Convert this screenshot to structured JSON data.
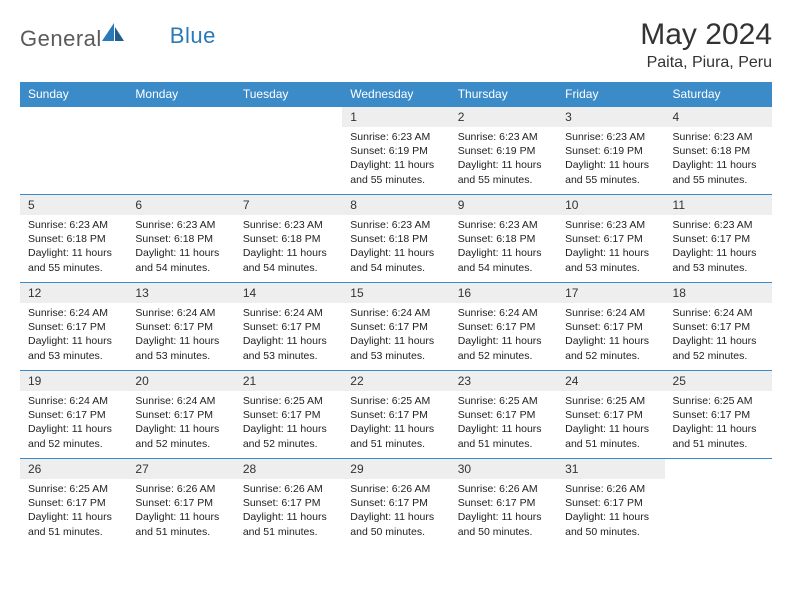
{
  "logo": {
    "text1": "General",
    "text2": "Blue"
  },
  "title": "May 2024",
  "location": "Paita, Piura, Peru",
  "colors": {
    "header_bg": "#3b8bc9",
    "header_text": "#ffffff",
    "daynum_bg": "#eeeeee",
    "border": "#3b8bc9",
    "logo_gray": "#5a5a5a",
    "logo_blue": "#2a7ab8"
  },
  "weekdays": [
    "Sunday",
    "Monday",
    "Tuesday",
    "Wednesday",
    "Thursday",
    "Friday",
    "Saturday"
  ],
  "weeks": [
    [
      null,
      null,
      null,
      {
        "n": "1",
        "sunrise": "6:23 AM",
        "sunset": "6:19 PM",
        "daylight": "11 hours and 55 minutes."
      },
      {
        "n": "2",
        "sunrise": "6:23 AM",
        "sunset": "6:19 PM",
        "daylight": "11 hours and 55 minutes."
      },
      {
        "n": "3",
        "sunrise": "6:23 AM",
        "sunset": "6:19 PM",
        "daylight": "11 hours and 55 minutes."
      },
      {
        "n": "4",
        "sunrise": "6:23 AM",
        "sunset": "6:18 PM",
        "daylight": "11 hours and 55 minutes."
      }
    ],
    [
      {
        "n": "5",
        "sunrise": "6:23 AM",
        "sunset": "6:18 PM",
        "daylight": "11 hours and 55 minutes."
      },
      {
        "n": "6",
        "sunrise": "6:23 AM",
        "sunset": "6:18 PM",
        "daylight": "11 hours and 54 minutes."
      },
      {
        "n": "7",
        "sunrise": "6:23 AM",
        "sunset": "6:18 PM",
        "daylight": "11 hours and 54 minutes."
      },
      {
        "n": "8",
        "sunrise": "6:23 AM",
        "sunset": "6:18 PM",
        "daylight": "11 hours and 54 minutes."
      },
      {
        "n": "9",
        "sunrise": "6:23 AM",
        "sunset": "6:18 PM",
        "daylight": "11 hours and 54 minutes."
      },
      {
        "n": "10",
        "sunrise": "6:23 AM",
        "sunset": "6:17 PM",
        "daylight": "11 hours and 53 minutes."
      },
      {
        "n": "11",
        "sunrise": "6:23 AM",
        "sunset": "6:17 PM",
        "daylight": "11 hours and 53 minutes."
      }
    ],
    [
      {
        "n": "12",
        "sunrise": "6:24 AM",
        "sunset": "6:17 PM",
        "daylight": "11 hours and 53 minutes."
      },
      {
        "n": "13",
        "sunrise": "6:24 AM",
        "sunset": "6:17 PM",
        "daylight": "11 hours and 53 minutes."
      },
      {
        "n": "14",
        "sunrise": "6:24 AM",
        "sunset": "6:17 PM",
        "daylight": "11 hours and 53 minutes."
      },
      {
        "n": "15",
        "sunrise": "6:24 AM",
        "sunset": "6:17 PM",
        "daylight": "11 hours and 53 minutes."
      },
      {
        "n": "16",
        "sunrise": "6:24 AM",
        "sunset": "6:17 PM",
        "daylight": "11 hours and 52 minutes."
      },
      {
        "n": "17",
        "sunrise": "6:24 AM",
        "sunset": "6:17 PM",
        "daylight": "11 hours and 52 minutes."
      },
      {
        "n": "18",
        "sunrise": "6:24 AM",
        "sunset": "6:17 PM",
        "daylight": "11 hours and 52 minutes."
      }
    ],
    [
      {
        "n": "19",
        "sunrise": "6:24 AM",
        "sunset": "6:17 PM",
        "daylight": "11 hours and 52 minutes."
      },
      {
        "n": "20",
        "sunrise": "6:24 AM",
        "sunset": "6:17 PM",
        "daylight": "11 hours and 52 minutes."
      },
      {
        "n": "21",
        "sunrise": "6:25 AM",
        "sunset": "6:17 PM",
        "daylight": "11 hours and 52 minutes."
      },
      {
        "n": "22",
        "sunrise": "6:25 AM",
        "sunset": "6:17 PM",
        "daylight": "11 hours and 51 minutes."
      },
      {
        "n": "23",
        "sunrise": "6:25 AM",
        "sunset": "6:17 PM",
        "daylight": "11 hours and 51 minutes."
      },
      {
        "n": "24",
        "sunrise": "6:25 AM",
        "sunset": "6:17 PM",
        "daylight": "11 hours and 51 minutes."
      },
      {
        "n": "25",
        "sunrise": "6:25 AM",
        "sunset": "6:17 PM",
        "daylight": "11 hours and 51 minutes."
      }
    ],
    [
      {
        "n": "26",
        "sunrise": "6:25 AM",
        "sunset": "6:17 PM",
        "daylight": "11 hours and 51 minutes."
      },
      {
        "n": "27",
        "sunrise": "6:26 AM",
        "sunset": "6:17 PM",
        "daylight": "11 hours and 51 minutes."
      },
      {
        "n": "28",
        "sunrise": "6:26 AM",
        "sunset": "6:17 PM",
        "daylight": "11 hours and 51 minutes."
      },
      {
        "n": "29",
        "sunrise": "6:26 AM",
        "sunset": "6:17 PM",
        "daylight": "11 hours and 50 minutes."
      },
      {
        "n": "30",
        "sunrise": "6:26 AM",
        "sunset": "6:17 PM",
        "daylight": "11 hours and 50 minutes."
      },
      {
        "n": "31",
        "sunrise": "6:26 AM",
        "sunset": "6:17 PM",
        "daylight": "11 hours and 50 minutes."
      },
      null
    ]
  ],
  "labels": {
    "sunrise": "Sunrise:",
    "sunset": "Sunset:",
    "daylight": "Daylight:"
  }
}
